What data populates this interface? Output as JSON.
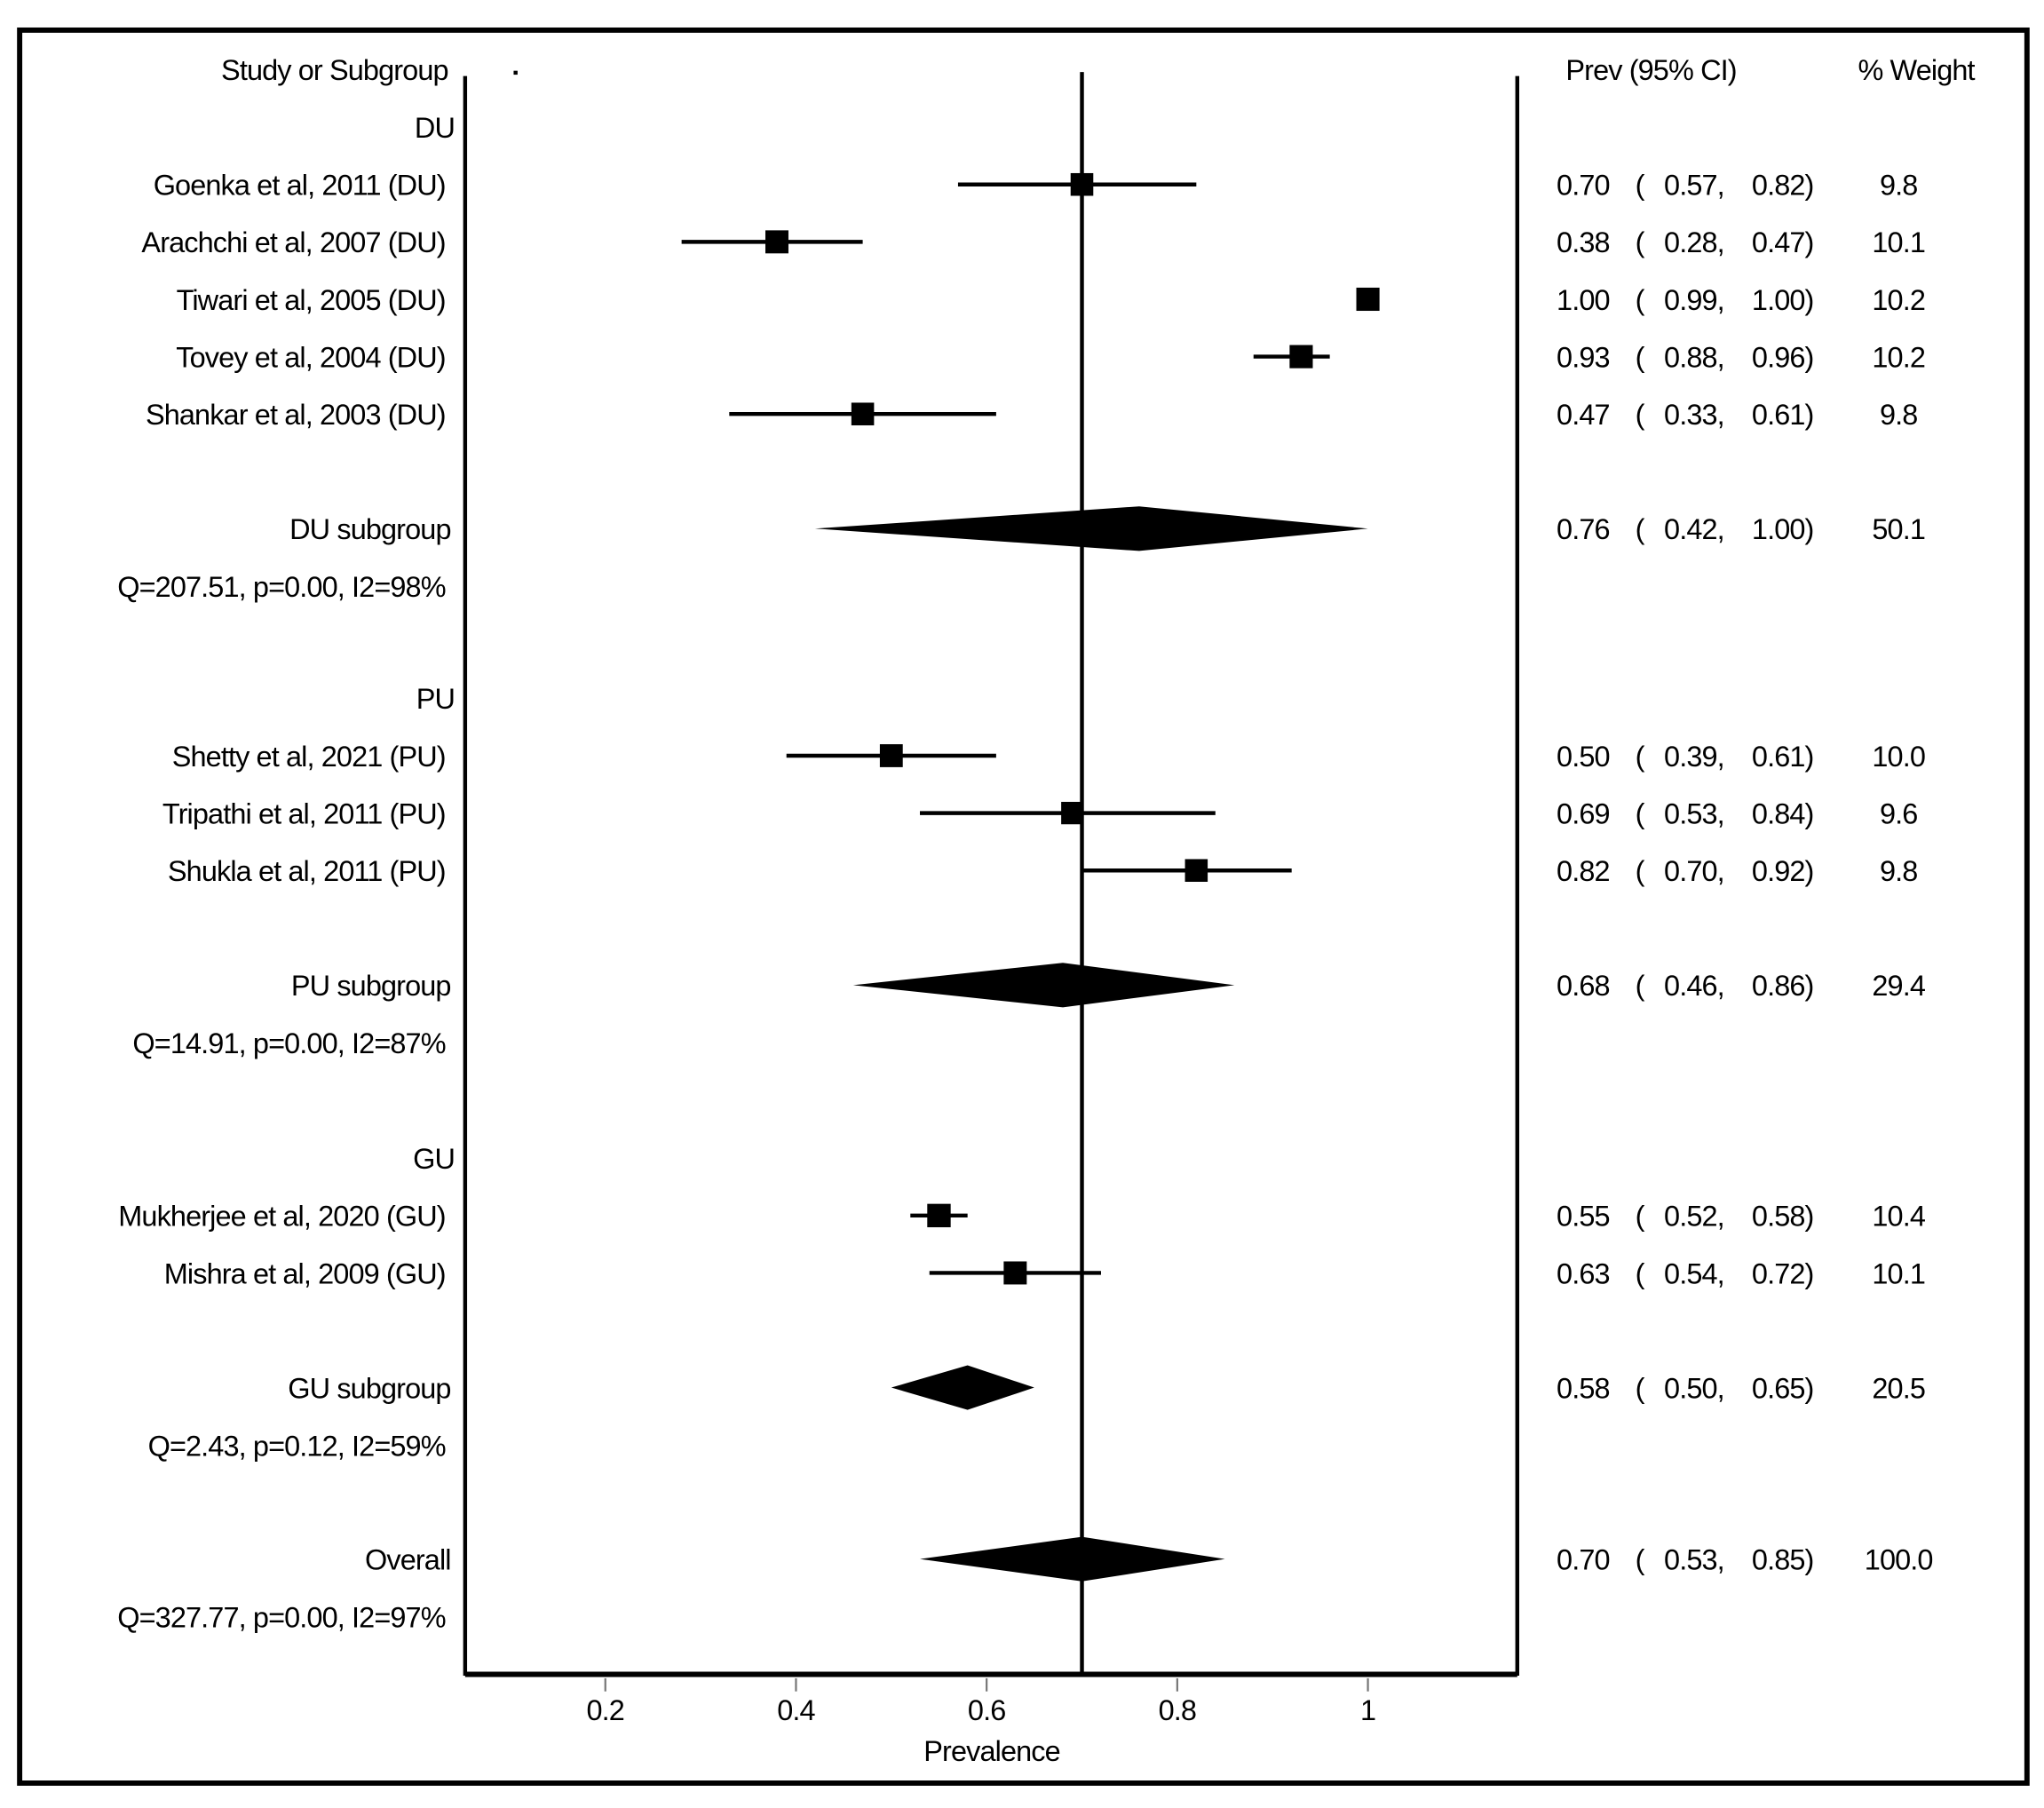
{
  "chart_data": {
    "type": "forest",
    "xlabel": "Prevalence",
    "xticks": [
      0.2,
      0.4,
      0.6,
      0.8,
      1
    ],
    "xtick_labels": [
      "0.2",
      "0.4",
      "0.6",
      "0.8",
      "1"
    ],
    "xlim": [
      0.05,
      1.15
    ],
    "reference_line": 0.7,
    "headers": {
      "study": "Study or Subgroup",
      "estimate": "Prev (95% CI)",
      "weight": "% Weight"
    },
    "groups": [
      {
        "label": "DU",
        "studies": [
          {
            "name": "Goenka et al, 2011 (DU)",
            "est": 0.7,
            "lo": 0.57,
            "hi": 0.82,
            "weight": 9.8
          },
          {
            "name": "Arachchi et al, 2007 (DU)",
            "est": 0.38,
            "lo": 0.28,
            "hi": 0.47,
            "weight": 10.1
          },
          {
            "name": "Tiwari et al, 2005 (DU)",
            "est": 1.0,
            "lo": 0.99,
            "hi": 1.0,
            "weight": 10.2
          },
          {
            "name": "Tovey et al, 2004 (DU)",
            "est": 0.93,
            "lo": 0.88,
            "hi": 0.96,
            "weight": 10.2
          },
          {
            "name": "Shankar et al, 2003 (DU)",
            "est": 0.47,
            "lo": 0.33,
            "hi": 0.61,
            "weight": 9.8
          }
        ],
        "summary": {
          "name": "DU subgroup",
          "est": 0.76,
          "lo": 0.42,
          "hi": 1.0,
          "weight": 50.1
        },
        "heterogeneity": "Q=207.51, p=0.00, I2=98%"
      },
      {
        "label": "PU",
        "studies": [
          {
            "name": "Shetty et al, 2021 (PU)",
            "est": 0.5,
            "lo": 0.39,
            "hi": 0.61,
            "weight": 10.0
          },
          {
            "name": "Tripathi et al, 2011 (PU)",
            "est": 0.69,
            "lo": 0.53,
            "hi": 0.84,
            "weight": 9.6
          },
          {
            "name": "Shukla et al, 2011 (PU)",
            "est": 0.82,
            "lo": 0.7,
            "hi": 0.92,
            "weight": 9.8
          }
        ],
        "summary": {
          "name": "PU subgroup",
          "est": 0.68,
          "lo": 0.46,
          "hi": 0.86,
          "weight": 29.4
        },
        "heterogeneity": "Q=14.91, p=0.00, I2=87%"
      },
      {
        "label": "GU",
        "studies": [
          {
            "name": "Mukherjee et al, 2020 (GU)",
            "est": 0.55,
            "lo": 0.52,
            "hi": 0.58,
            "weight": 10.4
          },
          {
            "name": "Mishra et al, 2009 (GU)",
            "est": 0.63,
            "lo": 0.54,
            "hi": 0.72,
            "weight": 10.1
          }
        ],
        "summary": {
          "name": "GU subgroup",
          "est": 0.58,
          "lo": 0.5,
          "hi": 0.65,
          "weight": 20.5
        },
        "heterogeneity": "Q=2.43, p=0.12, I2=59%"
      }
    ],
    "overall": {
      "name": "Overall",
      "est": 0.7,
      "lo": 0.53,
      "hi": 0.85,
      "weight": 100.0
    },
    "overall_heterogeneity": "Q=327.77, p=0.00, I2=97%"
  }
}
